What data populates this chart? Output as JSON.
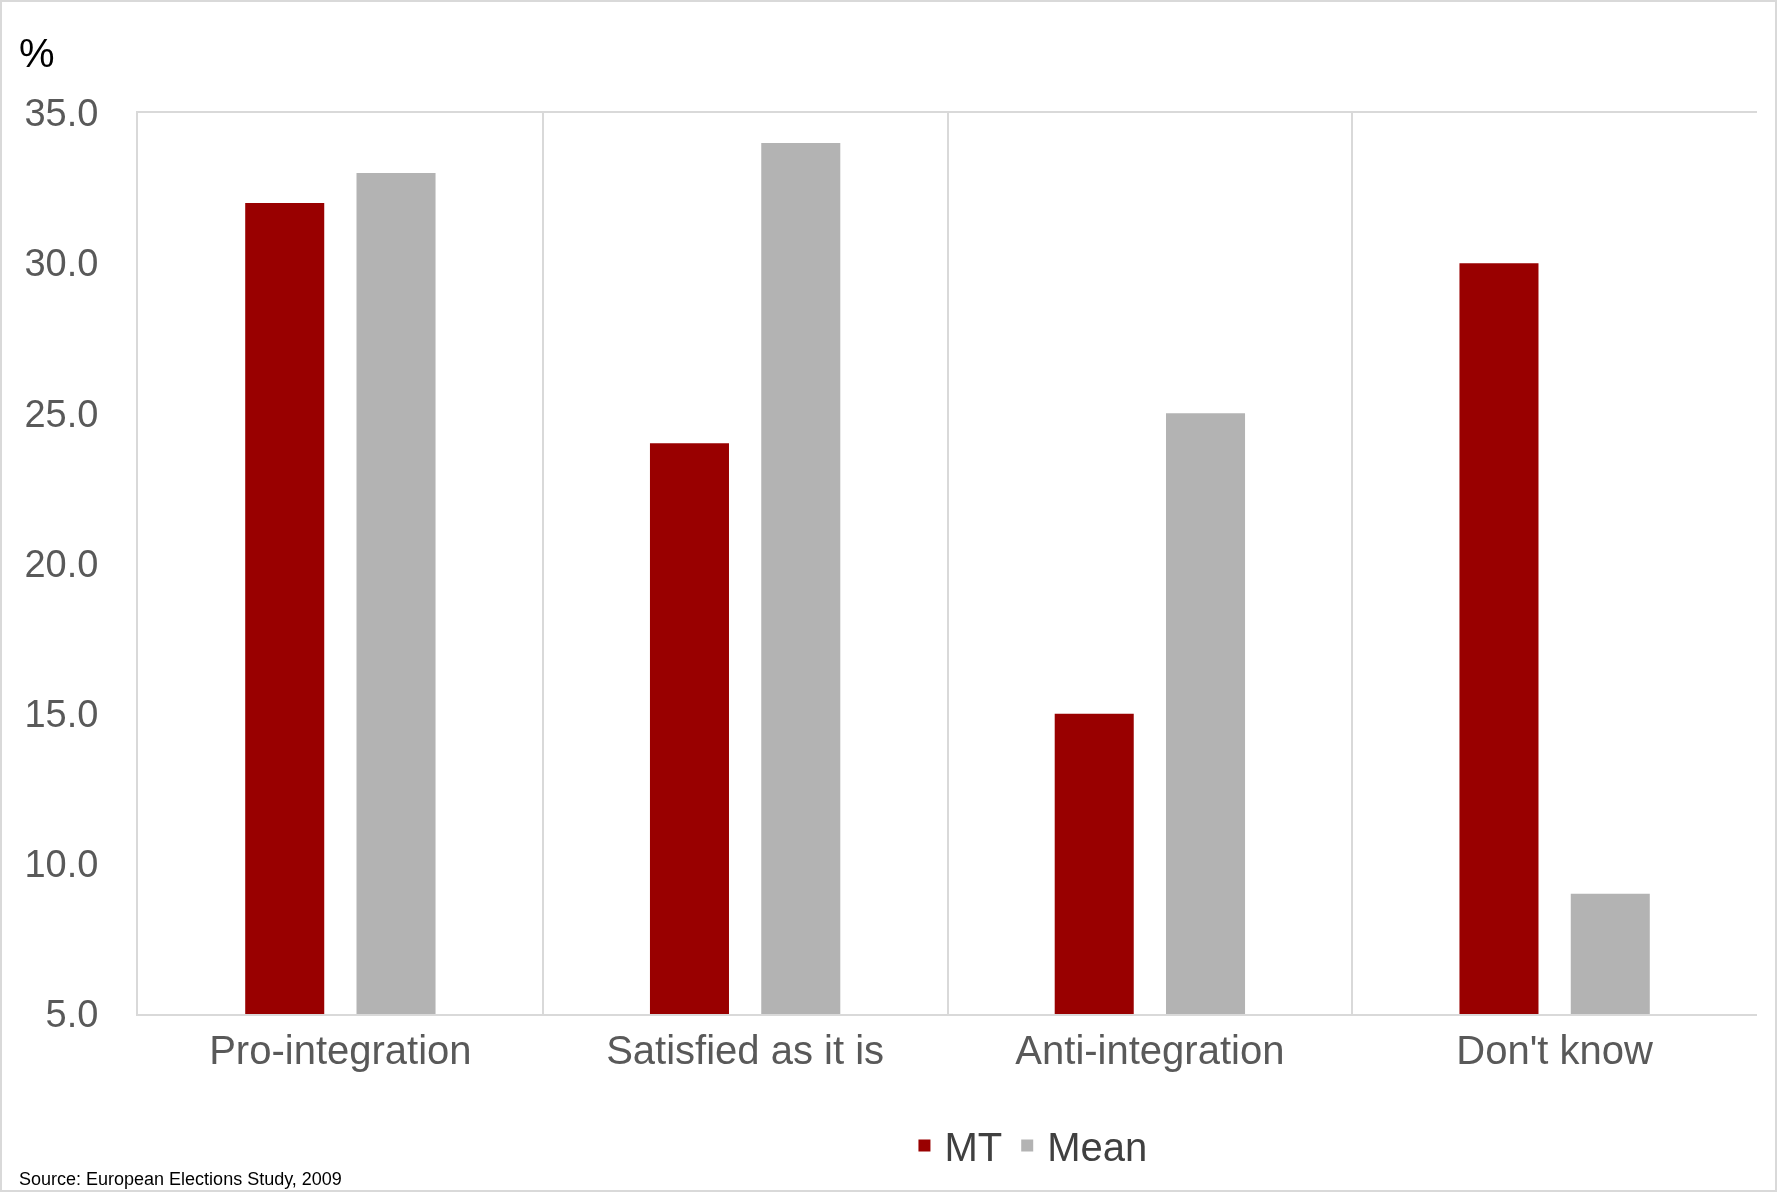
{
  "chart_data": {
    "type": "bar",
    "ylabel": "%",
    "categories": [
      "Pro-integration",
      "Satisfied as it is",
      "Anti-integration",
      "Don't know"
    ],
    "series": [
      {
        "name": "MT",
        "color": "#990000",
        "values": [
          32,
          24,
          15,
          30
        ]
      },
      {
        "name": "Mean",
        "color": "#b3b3b3",
        "values": [
          33,
          34,
          25,
          9
        ]
      }
    ],
    "ylim": [
      5,
      35
    ],
    "yticks": [
      {
        "value": 5,
        "label": "5.0"
      },
      {
        "value": 10,
        "label": "10.0"
      },
      {
        "value": 15,
        "label": "15.0"
      },
      {
        "value": 20,
        "label": "20.0"
      },
      {
        "value": 25,
        "label": "25.0"
      },
      {
        "value": 30,
        "label": "30.0"
      },
      {
        "value": 35,
        "label": "35.0"
      }
    ],
    "grid": "x",
    "legend": "bottom",
    "annotations": [
      "Source: European Elections Study, 2009"
    ]
  }
}
